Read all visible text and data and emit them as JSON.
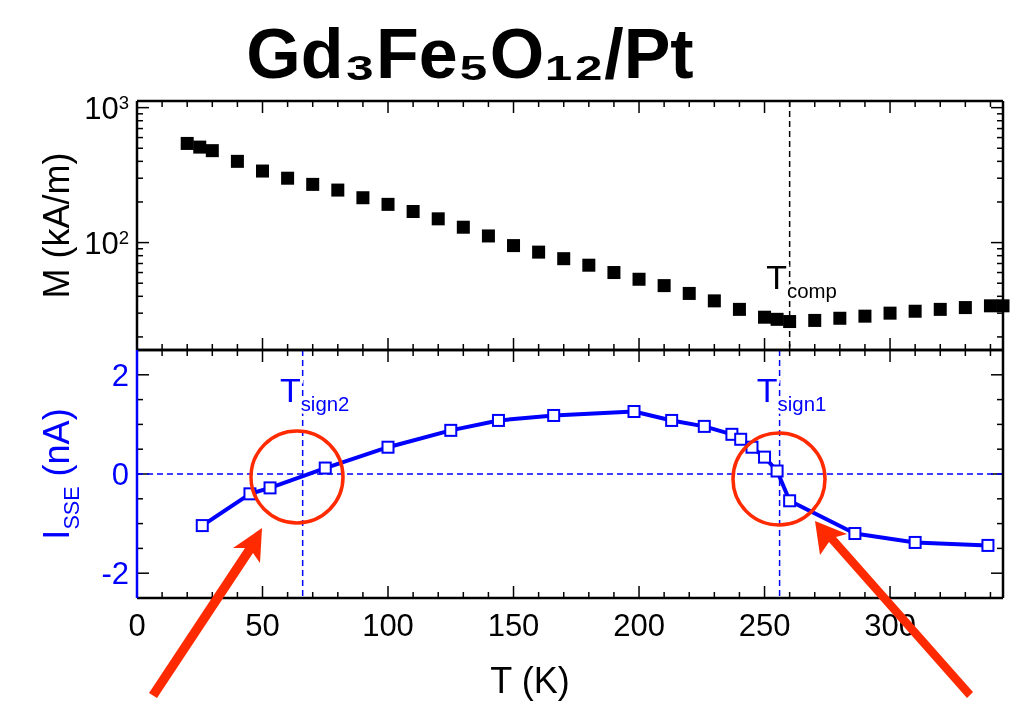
{
  "chart_data": [
    {
      "type": "scatter",
      "title": "Gd₃Fe₅O₁₂/Pt",
      "ylabel": "M (kA/m)",
      "log": "y",
      "marker": "square",
      "tick_labels": "y",
      "xlim": [
        0,
        345
      ],
      "xticks": [
        0,
        {
          "value": 10,
          "label": null
        },
        {
          "value": 20,
          "label": null
        },
        {
          "value": 30,
          "label": null
        },
        {
          "value": 40,
          "label": null
        },
        50,
        {
          "value": 60,
          "label": null
        },
        {
          "value": 70,
          "label": null
        },
        {
          "value": 80,
          "label": null
        },
        {
          "value": 90,
          "label": null
        },
        100,
        {
          "value": 110,
          "label": null
        },
        {
          "value": 120,
          "label": null
        },
        {
          "value": 130,
          "label": null
        },
        {
          "value": 140,
          "label": null
        },
        150,
        {
          "value": 160,
          "label": null
        },
        {
          "value": 170,
          "label": null
        },
        {
          "value": 180,
          "label": null
        },
        {
          "value": 190,
          "label": null
        },
        200,
        {
          "value": 210,
          "label": null
        },
        {
          "value": 220,
          "label": null
        },
        {
          "value": 230,
          "label": null
        },
        {
          "value": 240,
          "label": null
        },
        250,
        {
          "value": 260,
          "label": null
        },
        {
          "value": 270,
          "label": null
        },
        {
          "value": 280,
          "label": null
        },
        {
          "value": 290,
          "label": null
        },
        300,
        {
          "value": 310,
          "label": null
        },
        {
          "value": 320,
          "label": null
        },
        {
          "value": 330,
          "label": null
        },
        {
          "value": 340,
          "label": null
        }
      ],
      "ylim": [
        16,
        1120
      ],
      "yticks": [
        {
          "value": 20,
          "label": null
        },
        {
          "value": 30,
          "label": null
        },
        {
          "value": 40,
          "label": null
        },
        {
          "value": 50,
          "label": null
        },
        {
          "value": 60,
          "label": null
        },
        {
          "value": 70,
          "label": null
        },
        {
          "value": 80,
          "label": null
        },
        {
          "value": 90,
          "label": null
        },
        {
          "value": 100,
          "label": "10$^{2}$"
        },
        {
          "value": 200,
          "label": null
        },
        {
          "value": 300,
          "label": null
        },
        {
          "value": 400,
          "label": null
        },
        {
          "value": 500,
          "label": null
        },
        {
          "value": 600,
          "label": null
        },
        {
          "value": 700,
          "label": null
        },
        {
          "value": 800,
          "label": null
        },
        {
          "value": 900,
          "label": null
        },
        {
          "value": 1000,
          "label": "10$^{3}$"
        }
      ],
      "ref_lines": [
        {
          "axis": "x",
          "value": 260,
          "label": "T$_{comp}$",
          "color": "#000000",
          "line_style": "dashed"
        }
      ],
      "series": [
        {
          "color": "#000000",
          "x": [
            20,
            25,
            30,
            40,
            50,
            60,
            70,
            80,
            90,
            100,
            110,
            120,
            130,
            140,
            150,
            160,
            170,
            180,
            190,
            200,
            210,
            220,
            230,
            240,
            250,
            255,
            260,
            270,
            280,
            290,
            300,
            310,
            320,
            330,
            340,
            345
          ],
          "values": [
            543,
            510,
            480,
            400,
            339,
            300,
            270,
            245,
            215,
            192,
            170,
            150,
            130,
            112,
            95,
            85,
            76,
            68,
            60,
            53.5,
            48,
            42,
            37,
            32,
            28,
            27,
            26,
            26.5,
            27.5,
            28.5,
            30,
            31,
            32,
            33,
            34,
            34
          ]
        }
      ]
    },
    {
      "type": "line",
      "xlabel": "T (K)",
      "ylabel": "I$_{SSE}$ (nA)",
      "marker": "square",
      "xlim": [
        0,
        345
      ],
      "xticks": [
        0,
        {
          "value": 10,
          "label": null
        },
        {
          "value": 20,
          "label": null
        },
        {
          "value": 30,
          "label": null
        },
        {
          "value": 40,
          "label": null
        },
        50,
        {
          "value": 60,
          "label": null
        },
        {
          "value": 70,
          "label": null
        },
        {
          "value": 80,
          "label": null
        },
        {
          "value": 90,
          "label": null
        },
        100,
        {
          "value": 110,
          "label": null
        },
        {
          "value": 120,
          "label": null
        },
        {
          "value": 130,
          "label": null
        },
        {
          "value": 140,
          "label": null
        },
        150,
        {
          "value": 160,
          "label": null
        },
        {
          "value": 170,
          "label": null
        },
        {
          "value": 180,
          "label": null
        },
        {
          "value": 190,
          "label": null
        },
        200,
        {
          "value": 210,
          "label": null
        },
        {
          "value": 220,
          "label": null
        },
        {
          "value": 230,
          "label": null
        },
        {
          "value": 240,
          "label": null
        },
        250,
        {
          "value": 260,
          "label": null
        },
        {
          "value": 270,
          "label": null
        },
        {
          "value": 280,
          "label": null
        },
        {
          "value": 290,
          "label": null
        },
        300,
        {
          "value": 310,
          "label": null
        },
        {
          "value": 320,
          "label": null
        },
        {
          "value": 330,
          "label": null
        },
        {
          "value": 340,
          "label": null
        }
      ],
      "ylim": [
        -2.5,
        2.5
      ],
      "yticks": [
        -2,
        {
          "value": -1.5,
          "label": null
        },
        {
          "value": -1,
          "label": null
        },
        {
          "value": -0.5,
          "label": null
        },
        0,
        {
          "value": 0.5,
          "label": null
        },
        {
          "value": 1,
          "label": null
        },
        {
          "value": 1.5,
          "label": null
        },
        2
      ],
      "ref_lines": [
        {
          "axis": "y",
          "value": 0,
          "color": "#0000ff",
          "line_style": "dashed"
        },
        {
          "axis": "x",
          "value": 66,
          "label": "T$_{sign2}$",
          "color": "#0000ff",
          "line_style": "dashed"
        },
        {
          "axis": "x",
          "value": 256,
          "label": "T$_{sign1}$",
          "color": "#0000ff",
          "line_style": "dashed"
        }
      ],
      "series": [
        {
          "color": "#0000ff",
          "x": [
            26,
            45,
            53,
            75,
            100,
            125,
            144,
            166,
            198,
            213,
            226,
            237,
            240.5,
            245,
            250,
            255,
            260,
            286,
            310,
            339
          ],
          "values": [
            -1.04,
            -0.4,
            -0.28,
            0.12,
            0.54,
            0.88,
            1.08,
            1.18,
            1.26,
            1.08,
            0.96,
            0.8,
            0.7,
            0.54,
            0.34,
            0.06,
            -0.54,
            -1.2,
            -1.38,
            -1.44
          ]
        }
      ]
    }
  ]
}
